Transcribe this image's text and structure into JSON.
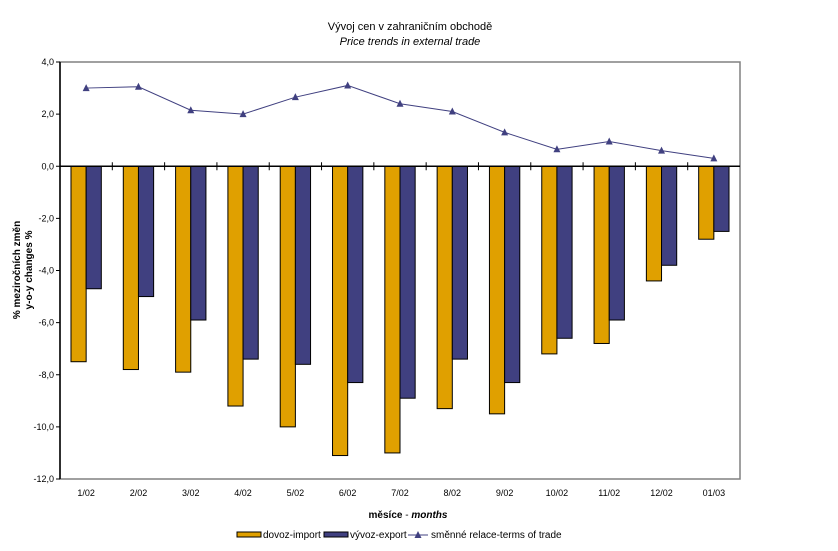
{
  "chart_data": {
    "type": "bar",
    "title": "Vývoj cen v zahraničním obchodě",
    "subtitle": "Price trends in external trade",
    "xlabel_main": "měsíce",
    "xlabel_sep": " - ",
    "xlabel_en": "months",
    "ylabel_line1": "% meziročních změn",
    "ylabel_line2": "y-o-y changes %",
    "ylim": [
      -12,
      4
    ],
    "yticks": [
      4,
      2,
      0,
      -2,
      -4,
      -6,
      -8,
      -10,
      -12
    ],
    "ytick_labels": [
      "4,0",
      "2,0",
      "0,0",
      "-2,0",
      "-4,0",
      "-6,0",
      "-8,0",
      "-10,0",
      "-12,0"
    ],
    "categories": [
      "1/02",
      "2/02",
      "3/02",
      "4/02",
      "5/02",
      "6/02",
      "7/02",
      "8/02",
      "9/02",
      "10/02",
      "11/02",
      "12/02",
      "01/03"
    ],
    "grid": false,
    "legend_position": "bottom",
    "series": [
      {
        "name": "dovoz-import",
        "kind": "bar",
        "color": "#E0A000",
        "values": [
          -7.5,
          -7.8,
          -7.9,
          -9.2,
          -10.0,
          -11.1,
          -11.0,
          -9.3,
          -9.5,
          -7.2,
          -6.8,
          -4.4,
          -2.8
        ]
      },
      {
        "name": "vývoz-export",
        "kind": "bar",
        "color": "#404080",
        "values": [
          -4.7,
          -5.0,
          -5.9,
          -7.4,
          -7.6,
          -8.3,
          -8.9,
          -7.4,
          -8.3,
          -6.6,
          -5.9,
          -3.8,
          -2.5
        ]
      },
      {
        "name": "směnné relace-terms of trade",
        "kind": "line",
        "marker": "triangle",
        "color": "#404080",
        "values": [
          3.0,
          3.05,
          2.15,
          2.0,
          2.65,
          3.1,
          2.4,
          2.1,
          1.3,
          0.65,
          0.95,
          0.6,
          0.3
        ]
      }
    ]
  }
}
